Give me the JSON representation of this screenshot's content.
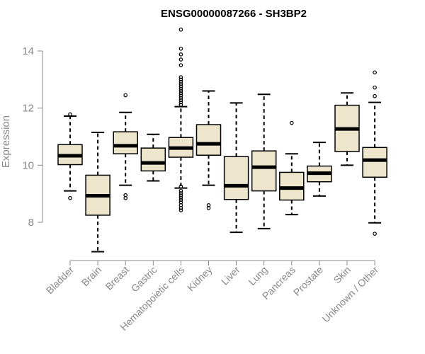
{
  "chart_data": {
    "type": "boxplot",
    "title": "ENSG00000087266 - SH3BP2",
    "xlabel": "",
    "ylabel": "Expression",
    "ylim": [
      6.8,
      15.0
    ],
    "yticks": [
      8,
      10,
      12,
      14
    ],
    "grid": false,
    "legend": "none",
    "colors": {
      "box_fill": "#ede6cd",
      "box_stroke": "#000000",
      "axis": "#888888"
    },
    "categories": [
      "Bladder",
      "Brain",
      "Breast",
      "Gastric",
      "Hematopoietic cells",
      "Kidney",
      "Liver",
      "Lung",
      "Pancreas",
      "Prostate",
      "Skin",
      "Unknown / Other"
    ],
    "boxes": [
      {
        "name": "Bladder",
        "whislo": 9.1,
        "q1": 10.02,
        "med": 10.33,
        "q3": 10.72,
        "whishi": 11.72,
        "fliers": [
          8.85,
          11.78
        ]
      },
      {
        "name": "Brain",
        "whislo": 6.97,
        "q1": 8.25,
        "med": 8.93,
        "q3": 9.65,
        "whishi": 11.15,
        "fliers": []
      },
      {
        "name": "Breast",
        "whislo": 9.3,
        "q1": 10.4,
        "med": 10.68,
        "q3": 11.17,
        "whishi": 11.85,
        "fliers": [
          8.85,
          8.95,
          12.45
        ]
      },
      {
        "name": "Gastric",
        "whislo": 9.45,
        "q1": 9.8,
        "med": 10.08,
        "q3": 10.6,
        "whishi": 11.08,
        "fliers": []
      },
      {
        "name": "Hematopoietic cells",
        "whislo": 9.2,
        "q1": 10.28,
        "med": 10.6,
        "q3": 10.97,
        "whishi": 12.05,
        "fliers": [
          8.42,
          8.5,
          8.6,
          8.7,
          8.78,
          8.86,
          8.94,
          9.02,
          9.1,
          9.25,
          12.12,
          12.2,
          12.28,
          12.36,
          12.44,
          12.52,
          12.6,
          12.68,
          12.76,
          12.84,
          12.92,
          13.0,
          13.08,
          13.5,
          13.7,
          13.88,
          14.08,
          14.75
        ]
      },
      {
        "name": "Kidney",
        "whislo": 9.3,
        "q1": 10.35,
        "med": 10.75,
        "q3": 11.42,
        "whishi": 12.6,
        "fliers": [
          8.5,
          8.6
        ]
      },
      {
        "name": "Liver",
        "whislo": 7.65,
        "q1": 8.8,
        "med": 9.28,
        "q3": 10.3,
        "whishi": 12.18,
        "fliers": []
      },
      {
        "name": "Lung",
        "whislo": 7.78,
        "q1": 9.1,
        "med": 9.93,
        "q3": 10.5,
        "whishi": 12.48,
        "fliers": []
      },
      {
        "name": "Pancreas",
        "whislo": 8.27,
        "q1": 8.78,
        "med": 9.2,
        "q3": 9.75,
        "whishi": 10.4,
        "fliers": [
          11.48
        ]
      },
      {
        "name": "Prostate",
        "whislo": 8.92,
        "q1": 9.42,
        "med": 9.72,
        "q3": 9.97,
        "whishi": 10.8,
        "fliers": []
      },
      {
        "name": "Skin",
        "whislo": 10.0,
        "q1": 10.48,
        "med": 11.27,
        "q3": 12.1,
        "whishi": 12.53,
        "fliers": []
      },
      {
        "name": "Unknown / Other",
        "whislo": 7.98,
        "q1": 9.58,
        "med": 10.18,
        "q3": 10.62,
        "whishi": 12.2,
        "fliers": [
          7.6,
          12.42,
          12.72,
          13.25
        ]
      }
    ]
  }
}
